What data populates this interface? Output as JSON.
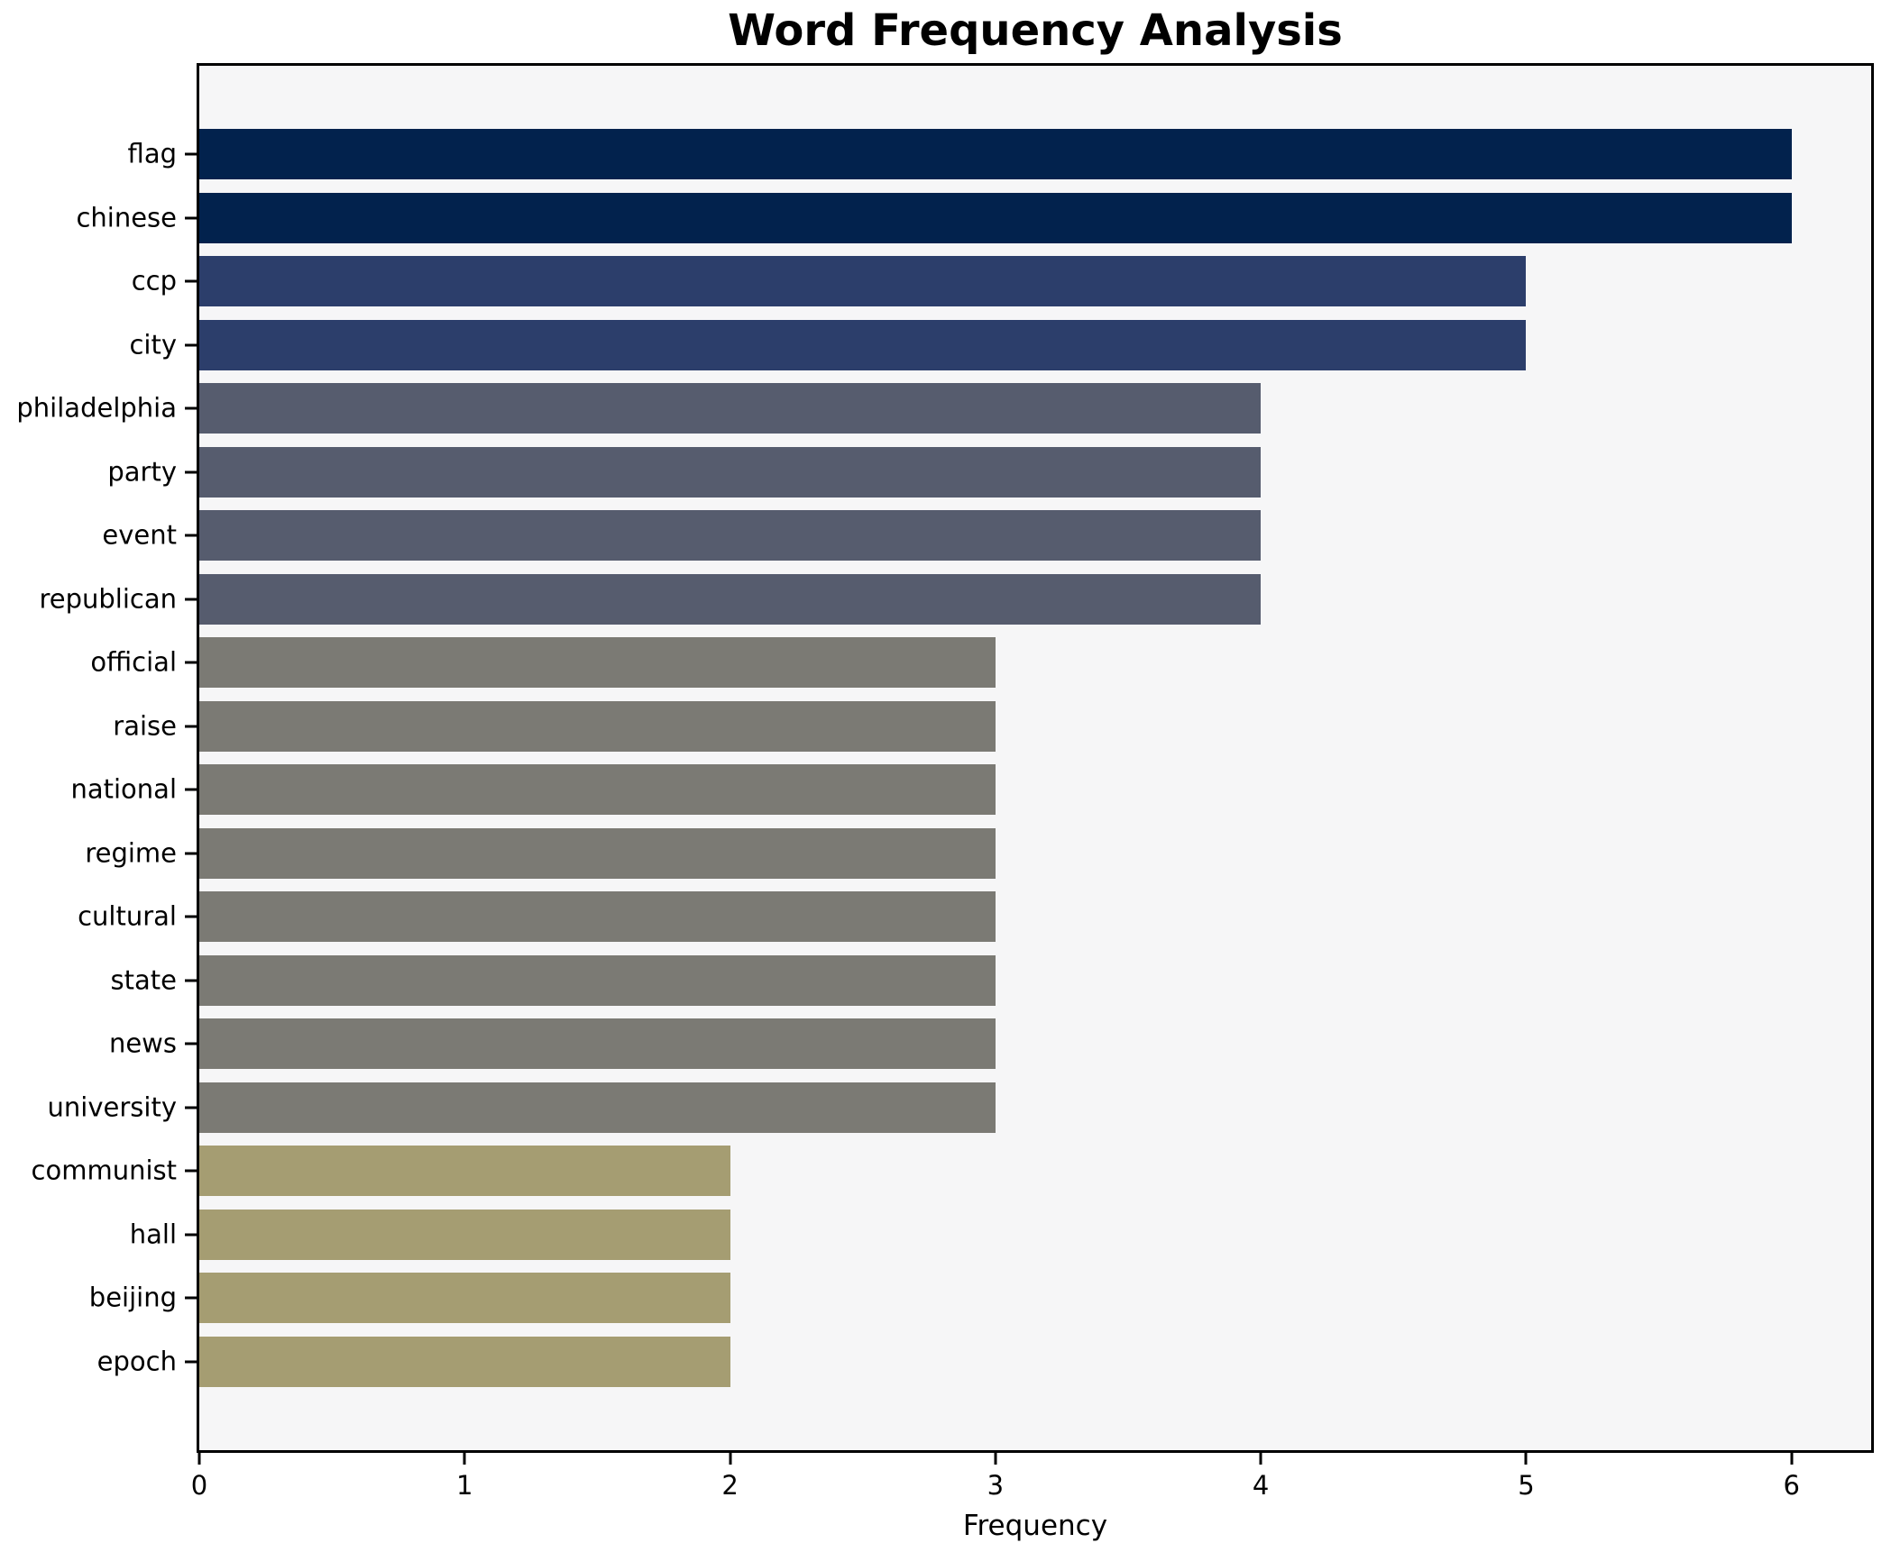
{
  "colors": {
    "figure_bg": "#ffffff",
    "plot_bg": "#f6f6f7",
    "axis": "#000000",
    "text": "#000000"
  },
  "chart_data": {
    "type": "bar",
    "orientation": "horizontal",
    "title": "Word Frequency Analysis",
    "xlabel": "Frequency",
    "ylabel": "",
    "categories": [
      "flag",
      "chinese",
      "ccp",
      "city",
      "philadelphia",
      "party",
      "event",
      "republican",
      "official",
      "raise",
      "national",
      "regime",
      "cultural",
      "state",
      "news",
      "university",
      "communist",
      "hall",
      "beijing",
      "epoch"
    ],
    "values": [
      6,
      6,
      5,
      5,
      4,
      4,
      4,
      4,
      3,
      3,
      3,
      3,
      3,
      3,
      3,
      3,
      2,
      2,
      2,
      2
    ],
    "xlim": [
      0,
      6.3
    ],
    "xticks": [
      0,
      1,
      2,
      3,
      4,
      5,
      6
    ],
    "grid": false,
    "legend": null,
    "bar_height_fraction": 0.8,
    "bar_color_by_value": {
      "6": "#02224d",
      "5": "#2c3e6b",
      "4": "#565c6e",
      "3": "#7b7a74",
      "2": "#a59d72"
    }
  }
}
